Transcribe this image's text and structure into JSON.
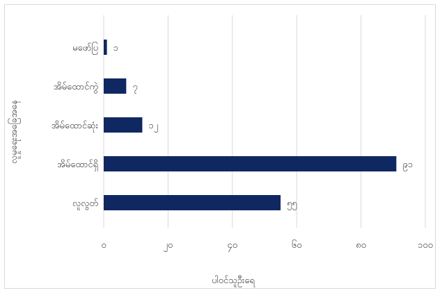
{
  "chart_data": {
    "type": "bar",
    "orientation": "horizontal",
    "categories": [
      "လူလွတ်",
      "အိမ်ထောင်ရှိ",
      "အိမ်ထောင်ဆုံး",
      "အိမ်ထောင်ကွဲ",
      "မဖော်ပြ"
    ],
    "values": [
      55,
      91,
      12,
      7,
      1
    ],
    "value_labels": [
      "၅၅",
      "၉၁",
      "၁၂",
      "၇",
      "၁"
    ],
    "xlabel": "ပါဝင်သူဦးရေ",
    "ylabel": "လူမှုရေးအခြေအနေ",
    "xlim": [
      0,
      100
    ],
    "xticks": [
      0,
      20,
      40,
      60,
      80,
      100
    ],
    "xtick_labels": [
      "၀",
      "၂၀",
      "၄၀",
      "၆၀",
      "၈၀",
      "၁၀၀"
    ],
    "grid": "vertical",
    "legend": "none",
    "bar_color": "#0f2861",
    "grid_color": "#d9d9d9",
    "text_color": "#404040"
  }
}
